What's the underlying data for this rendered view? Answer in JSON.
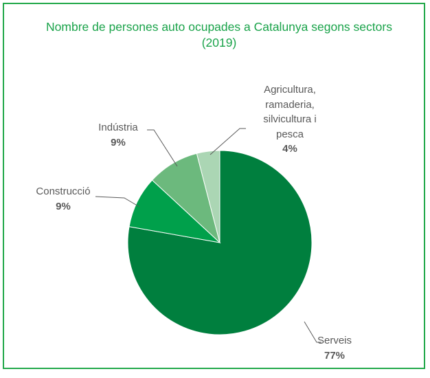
{
  "chart_data": {
    "type": "pie",
    "title": "Nombre de persones auto ocupades a Catalunya segons sectors (2019)",
    "categories": [
      "Serveis",
      "Construcció",
      "Indústria",
      "Agricultura, ramaderia, silvicultura i pesca"
    ],
    "values": [
      77,
      9,
      9,
      4
    ],
    "value_labels": [
      "77%",
      "9%",
      "9%",
      "4%"
    ],
    "colors": [
      "#007f3e",
      "#00a04b",
      "#6cb97d",
      "#abd6b4"
    ]
  }
}
